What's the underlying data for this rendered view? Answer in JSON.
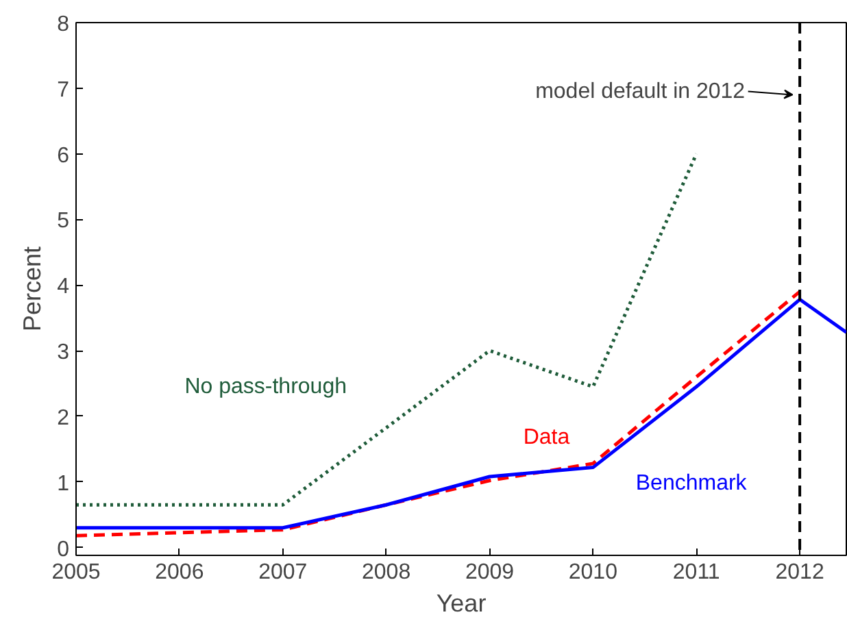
{
  "chart_data": {
    "type": "line",
    "xlabel": "Year",
    "ylabel": "Percent",
    "xlim": [
      2005,
      2012.45
    ],
    "ylim": [
      -0.12,
      8
    ],
    "xticks": [
      2005,
      2006,
      2007,
      2008,
      2009,
      2010,
      2011,
      2012
    ],
    "yticks": [
      0,
      1,
      2,
      3,
      4,
      5,
      6,
      7,
      8
    ],
    "grid": false,
    "series": [
      {
        "name": "No pass-through",
        "color": "#1f5c3a",
        "line_style": "dotted",
        "x": [
          2005,
          2007,
          2009,
          2010,
          2011
        ],
        "values": [
          0.65,
          0.65,
          3.0,
          2.45,
          6.0
        ]
      },
      {
        "name": "Data",
        "color": "#ff0000",
        "line_style": "dashed",
        "x": [
          2005,
          2007,
          2008,
          2009,
          2010,
          2011,
          2012
        ],
        "values": [
          0.18,
          0.27,
          0.65,
          1.02,
          1.28,
          2.6,
          3.9
        ]
      },
      {
        "name": "Benchmark",
        "color": "#0000ff",
        "line_style": "solid",
        "x": [
          2005,
          2007,
          2008,
          2009,
          2010,
          2011,
          2012,
          2012.45
        ],
        "values": [
          0.3,
          0.3,
          0.65,
          1.08,
          1.22,
          2.45,
          3.78,
          3.28
        ]
      }
    ],
    "ref_lines": [
      {
        "axis": "x",
        "value": 2012,
        "color": "#000000",
        "line_style": "dashed"
      }
    ],
    "annotations": [
      {
        "text": "model default in 2012",
        "x": 2012,
        "y": 6.9
      }
    ]
  }
}
